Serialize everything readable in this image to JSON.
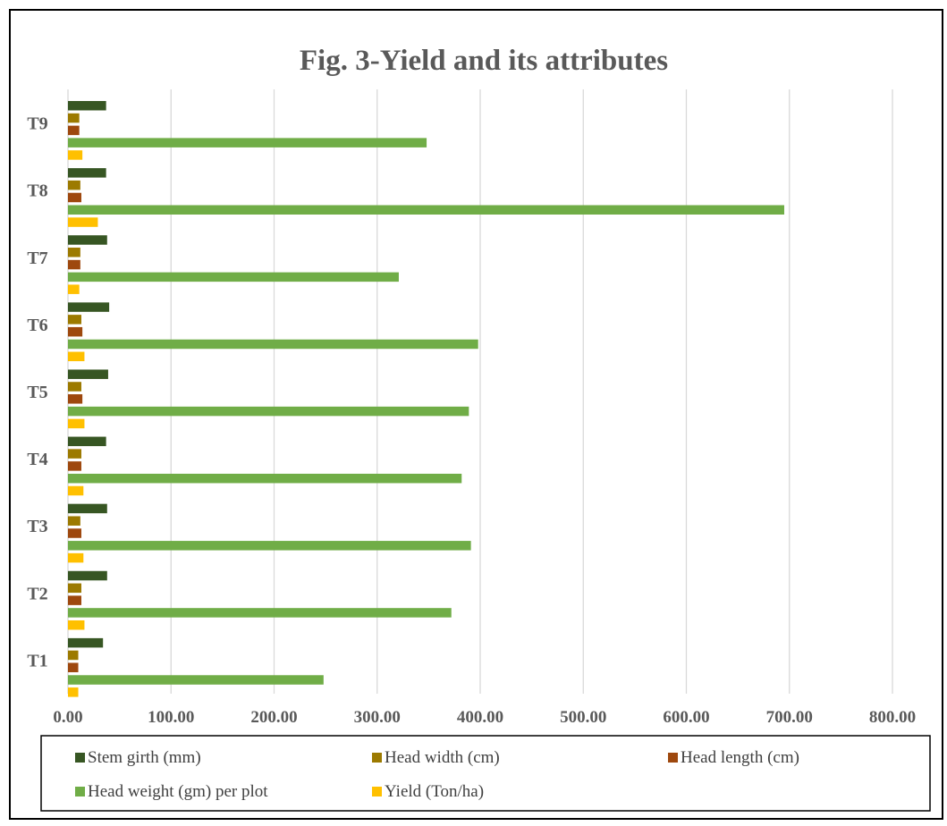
{
  "chart_data": {
    "type": "bar",
    "orientation": "horizontal",
    "title": "Fig. 3-Yield and its attributes",
    "xlabel": "",
    "ylabel": "",
    "xlim": [
      0,
      800
    ],
    "x_ticks": [
      "0.00",
      "100.00",
      "200.00",
      "300.00",
      "400.00",
      "500.00",
      "600.00",
      "700.00",
      "800.00"
    ],
    "grid": true,
    "legend_position": "bottom",
    "categories": [
      "T1",
      "T2",
      "T3",
      "T4",
      "T5",
      "T6",
      "T7",
      "T8",
      "T9"
    ],
    "series": [
      {
        "name": "Stem girth (mm)",
        "color": "#375623",
        "values": [
          34,
          38,
          38,
          37,
          39,
          40,
          38,
          37,
          37
        ]
      },
      {
        "name": "Head width (cm)",
        "color": "#9C7A00",
        "values": [
          10,
          13,
          12,
          13,
          13,
          13,
          12,
          12,
          11
        ]
      },
      {
        "name": "Head length (cm)",
        "color": "#9E480E",
        "values": [
          10,
          13,
          13,
          13,
          14,
          14,
          12,
          13,
          11
        ]
      },
      {
        "name": "Head weight (gm) per plot",
        "color": "#70AD47",
        "values": [
          248,
          372,
          391,
          382,
          389,
          398,
          321,
          695,
          348
        ]
      },
      {
        "name": "Yield (Ton/ha)",
        "color": "#FFC000",
        "values": [
          10,
          16,
          15,
          15,
          16,
          16,
          11,
          29,
          14
        ]
      }
    ]
  }
}
